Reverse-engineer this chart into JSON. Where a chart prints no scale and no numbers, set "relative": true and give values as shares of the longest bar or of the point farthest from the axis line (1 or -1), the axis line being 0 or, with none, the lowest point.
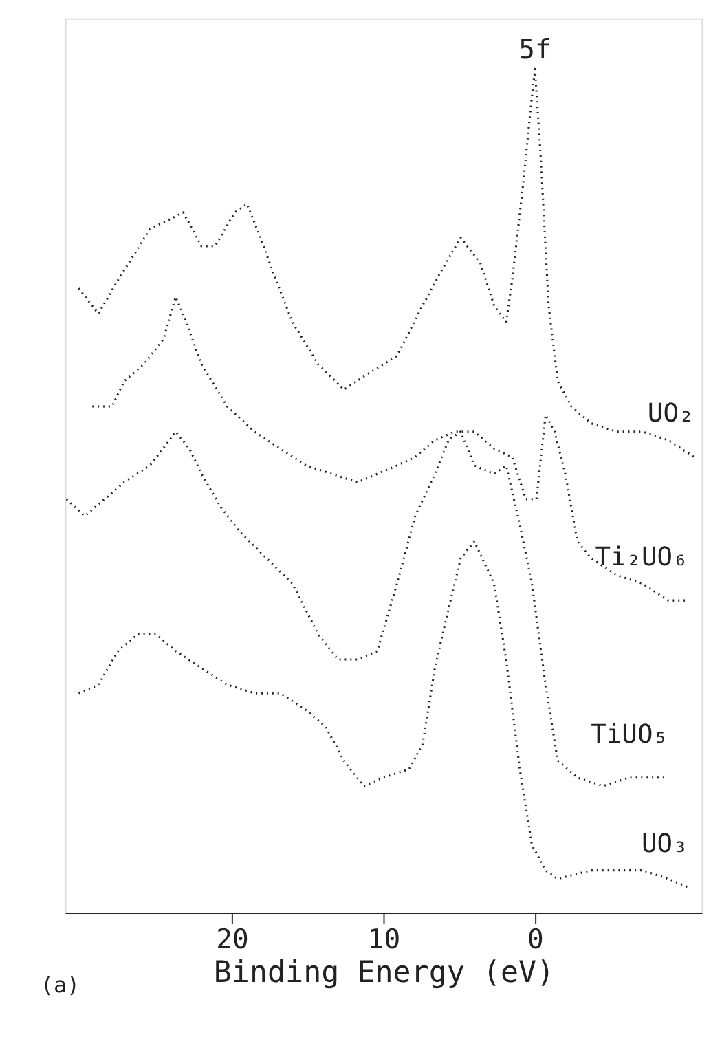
{
  "chart_data": {
    "type": "line",
    "xlabel": "Binding Energy (eV)",
    "relative": true,
    "line_style": "dotted",
    "grid": false,
    "xlim": [
      31,
      -11
    ],
    "xticks": [
      20,
      10,
      0
    ],
    "annotations": [
      {
        "text": "5f",
        "x": 0,
        "y": 1.0
      },
      "(a)"
    ],
    "series": [
      {
        "name": "UO₂",
        "color": "#222222",
        "x": [
          30.1,
          28.8,
          27.5,
          25.4,
          23.2,
          22.0,
          21.1,
          19.8,
          19.0,
          18.1,
          17.3,
          16.0,
          14.3,
          12.6,
          10.9,
          9.1,
          7.4,
          6.2,
          4.9,
          3.6,
          2.7,
          1.9,
          1.5,
          0.8,
          0.3,
          0,
          -0.4,
          -0.9,
          -1.5,
          -2.4,
          -3.7,
          -5.4,
          -7.1,
          -8.8,
          -10.5
        ],
        "values": [
          0.74,
          0.71,
          0.75,
          0.81,
          0.83,
          0.79,
          0.79,
          0.83,
          0.84,
          0.8,
          0.76,
          0.7,
          0.65,
          0.62,
          0.64,
          0.66,
          0.72,
          0.76,
          0.8,
          0.77,
          0.72,
          0.7,
          0.75,
          0.86,
          0.95,
          1.0,
          0.89,
          0.72,
          0.63,
          0.6,
          0.58,
          0.57,
          0.57,
          0.56,
          0.54
        ]
      },
      {
        "name": "Ti₂UO₆",
        "color": "#222222",
        "x": [
          29.2,
          27.9,
          27.1,
          25.8,
          24.5,
          23.7,
          23.0,
          22.0,
          20.3,
          18.5,
          16.8,
          15.1,
          13.4,
          11.7,
          10.4,
          9.1,
          7.9,
          6.6,
          5.3,
          4.0,
          2.7,
          1.5,
          0.6,
          -0.1,
          -0.7,
          -1.3,
          -2.0,
          -2.8,
          -3.7,
          -5.4,
          -7.1,
          -8.8,
          -10.1
        ],
        "values": [
          0.6,
          0.6,
          0.63,
          0.65,
          0.68,
          0.73,
          0.7,
          0.65,
          0.6,
          0.57,
          0.55,
          0.53,
          0.52,
          0.51,
          0.52,
          0.53,
          0.54,
          0.56,
          0.57,
          0.57,
          0.55,
          0.54,
          0.49,
          0.49,
          0.59,
          0.57,
          0.52,
          0.44,
          0.42,
          0.4,
          0.39,
          0.37,
          0.37
        ]
      },
      {
        "name": "TiUO₅",
        "color": "#222222",
        "x": [
          30.9,
          29.7,
          28.4,
          27.1,
          25.4,
          24.1,
          23.7,
          22.8,
          22.0,
          20.7,
          19.4,
          17.7,
          16.0,
          14.3,
          13.0,
          11.7,
          10.4,
          9.1,
          7.9,
          6.6,
          5.7,
          4.9,
          4.0,
          2.7,
          1.9,
          1.0,
          0.2,
          -0.7,
          -1.5,
          -2.8,
          -4.5,
          -6.2,
          -7.9,
          -8.8
        ],
        "values": [
          0.49,
          0.47,
          0.49,
          0.51,
          0.53,
          0.56,
          0.57,
          0.55,
          0.52,
          0.48,
          0.45,
          0.42,
          0.39,
          0.33,
          0.3,
          0.3,
          0.31,
          0.39,
          0.47,
          0.52,
          0.56,
          0.57,
          0.53,
          0.52,
          0.53,
          0.46,
          0.39,
          0.27,
          0.18,
          0.16,
          0.15,
          0.16,
          0.16,
          0.16
        ]
      },
      {
        "name": "UO₃",
        "color": "#222222",
        "x": [
          30.1,
          28.8,
          27.5,
          26.2,
          25.0,
          23.7,
          22.0,
          20.3,
          18.5,
          16.8,
          15.1,
          13.8,
          12.6,
          11.3,
          10.0,
          8.3,
          7.4,
          6.6,
          5.7,
          4.9,
          4.0,
          2.7,
          1.9,
          1.0,
          0.2,
          -0.7,
          -1.5,
          -3.7,
          -5.4,
          -7.1,
          -8.8,
          -10.1
        ],
        "values": [
          0.26,
          0.27,
          0.31,
          0.33,
          0.33,
          0.31,
          0.29,
          0.27,
          0.26,
          0.26,
          0.24,
          0.22,
          0.18,
          0.15,
          0.16,
          0.17,
          0.2,
          0.29,
          0.36,
          0.42,
          0.44,
          0.39,
          0.3,
          0.17,
          0.08,
          0.05,
          0.04,
          0.05,
          0.05,
          0.05,
          0.04,
          0.03
        ]
      }
    ]
  }
}
